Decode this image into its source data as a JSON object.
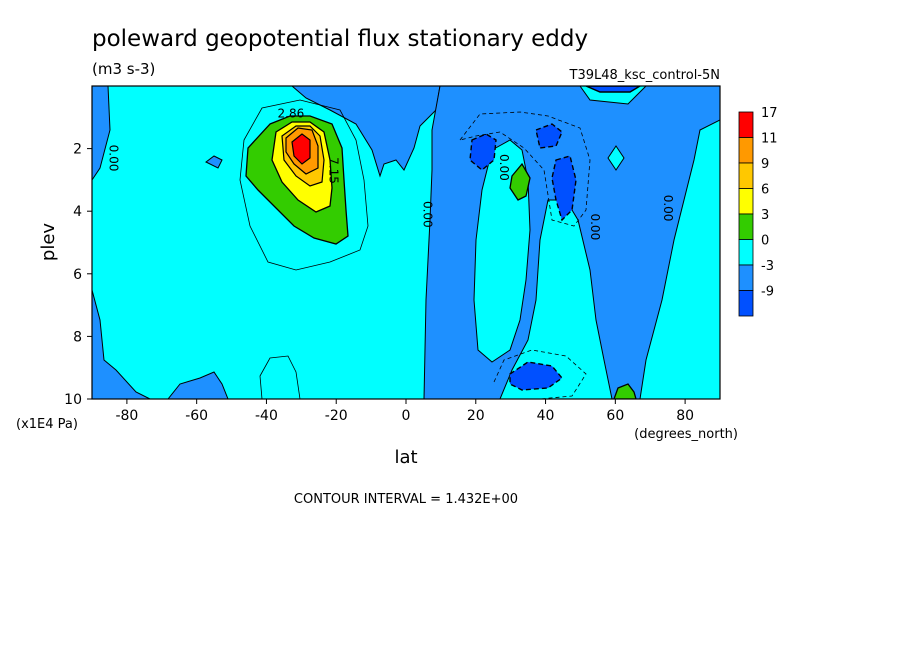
{
  "title": "poleward geopotential flux stationary eddy",
  "units": "(m3 s-3)",
  "dataset": "T39L48_ksc_control-5N",
  "footer": "CONTOUR INTERVAL = 1.432E+00",
  "chart_data": {
    "type": "heatmap",
    "title": "poleward geopotential flux stationary eddy",
    "subtitle": "(m3 s-3)",
    "xlabel": "lat",
    "xunits": "(degrees_north)",
    "ylabel": "plev",
    "yunits": "(x1E4 Pa)",
    "xlim": [
      -90,
      90
    ],
    "ylim": [
      10,
      0
    ],
    "xticks": [
      -80,
      -60,
      -40,
      -20,
      0,
      20,
      40,
      60,
      80
    ],
    "yticks": [
      2,
      4,
      6,
      8,
      10
    ],
    "legend": {
      "position": "right",
      "levels": [
        "17",
        "11",
        "9",
        "6",
        "3",
        "0",
        "-3",
        "-9"
      ],
      "colors": [
        "#ff0000",
        "#ff9900",
        "#ffc800",
        "#ffff00",
        "#33cc00",
        "#00ffff",
        "#1e90ff",
        "#0050ff"
      ]
    },
    "contour_labels": [
      {
        "text": "2.86",
        "x": -33,
        "y": 1.0
      },
      {
        "text": "7.15",
        "x": -22,
        "y": 2.7,
        "rotate": 90
      },
      {
        "text": "0.00",
        "x": -85,
        "y": 2.3,
        "rotate": 90
      },
      {
        "text": "0.00",
        "x": 5,
        "y": 4.1,
        "rotate": 90
      },
      {
        "text": "0.00",
        "x": 27,
        "y": 2.6,
        "rotate": 90
      },
      {
        "text": "0.00",
        "x": 53,
        "y": 4.5,
        "rotate": 90
      },
      {
        "text": "0.00",
        "x": 74,
        "y": 3.9,
        "rotate": 90
      }
    ],
    "contour_interval": 1.432
  }
}
